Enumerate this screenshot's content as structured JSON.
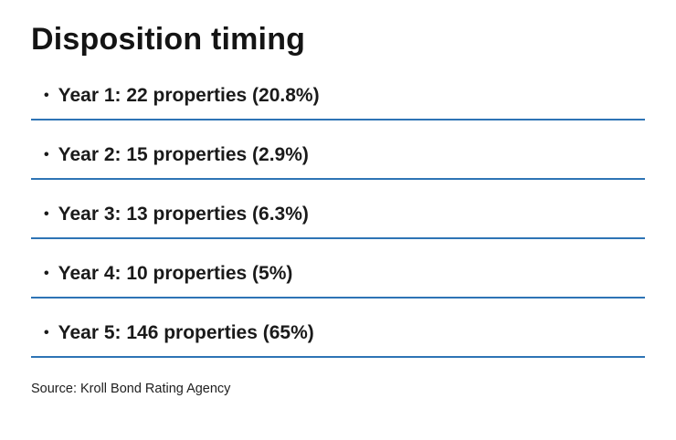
{
  "title": "Disposition timing",
  "items": [
    {
      "label": "Year 1: 22 properties (20.8%)"
    },
    {
      "label": "Year 2: 15 properties (2.9%)"
    },
    {
      "label": "Year 3: 13 properties (6.3%)"
    },
    {
      "label": "Year 4: 10 properties (5%)"
    },
    {
      "label": "Year 5: 146 properties (65%)"
    }
  ],
  "bullet_glyph": "•",
  "source": "Source: Kroll Bond Rating Agency",
  "colors": {
    "divider_blue": "#2e74b5",
    "text": "#1a1a1a",
    "background": "#ffffff"
  },
  "chart_data": {
    "type": "table",
    "title": "Disposition timing",
    "categories": [
      "Year 1",
      "Year 2",
      "Year 3",
      "Year 4",
      "Year 5"
    ],
    "series": [
      {
        "name": "Properties",
        "values": [
          22,
          15,
          13,
          10,
          146
        ]
      },
      {
        "name": "Percent",
        "values": [
          20.8,
          2.9,
          6.3,
          5,
          65
        ]
      }
    ],
    "source": "Source: Kroll Bond Rating Agency",
    "legend_position": "none",
    "grid": false
  }
}
